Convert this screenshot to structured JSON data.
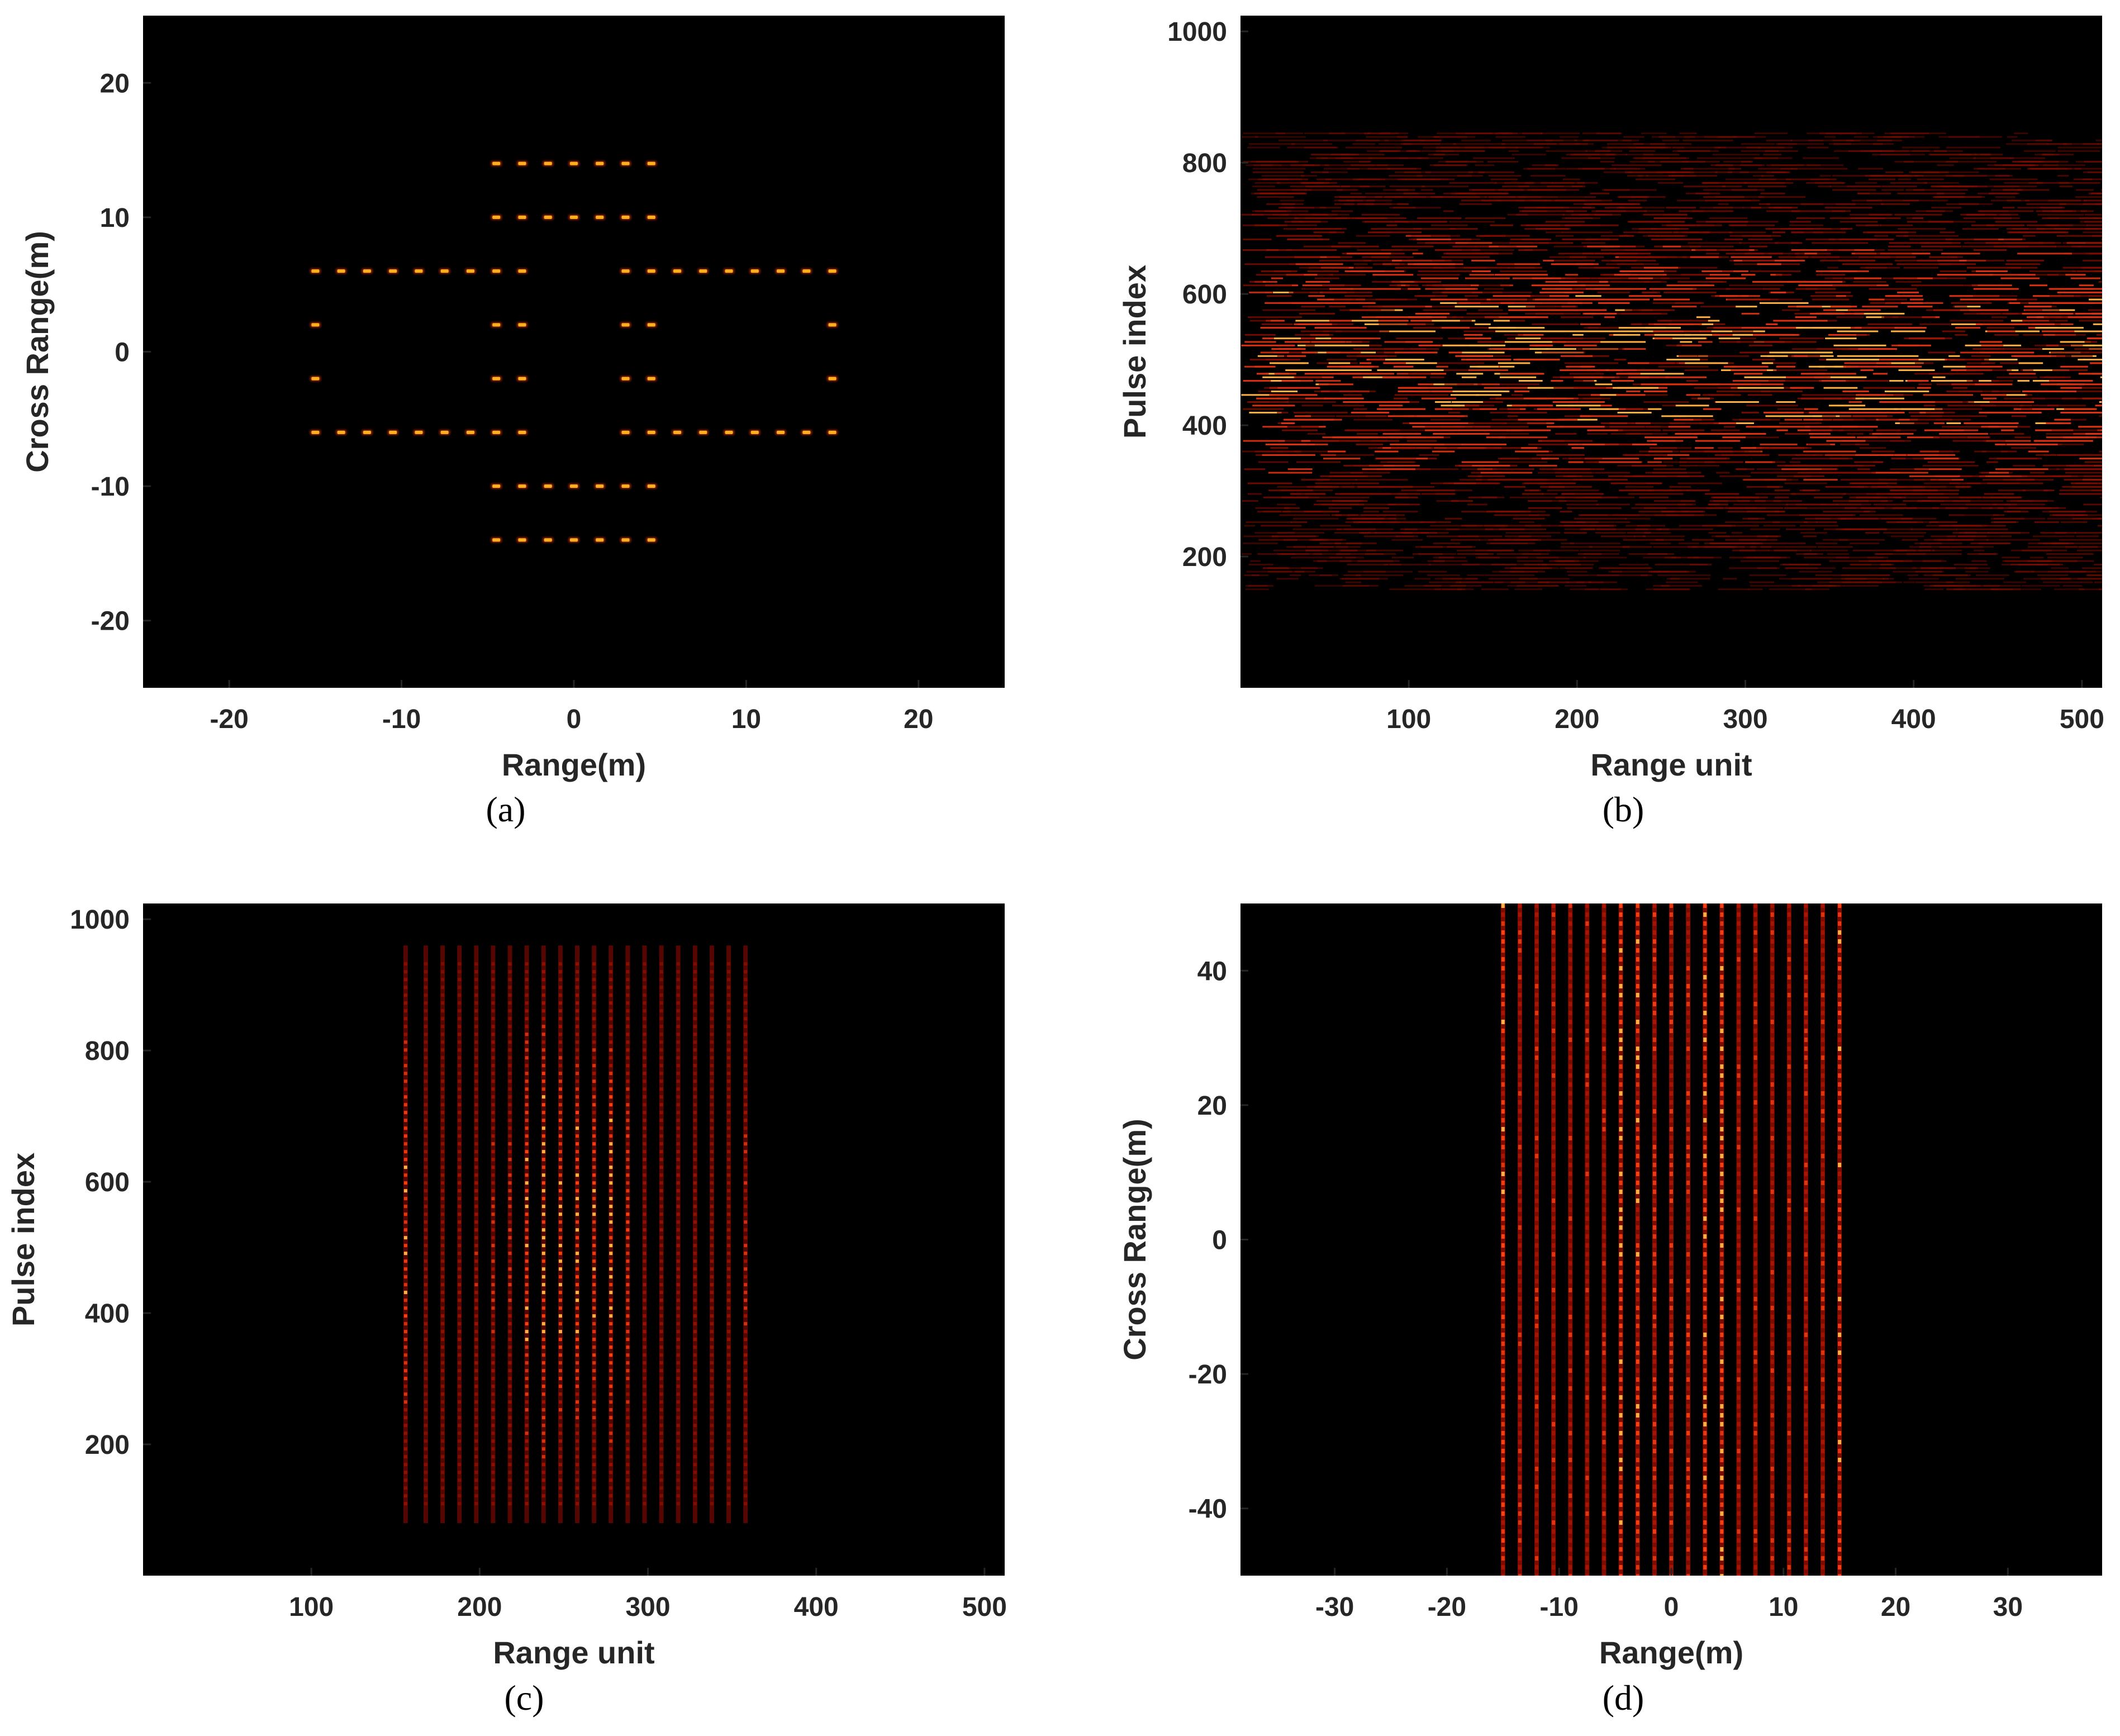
{
  "chart_data": [
    {
      "panel": "(a)",
      "type": "scatter",
      "xlabel": "Range(m)",
      "ylabel": "Cross Range(m)",
      "xlim": [
        -25,
        25
      ],
      "ylim": [
        -25,
        25
      ],
      "xticks": [
        -20,
        -10,
        0,
        10,
        20
      ],
      "yticks": [
        -20,
        -10,
        0,
        10,
        20
      ],
      "xtick_labels": [
        "-20",
        "-10",
        "0",
        "10",
        "20"
      ],
      "ytick_labels": [
        "-20",
        "-10",
        "0",
        "10",
        "20"
      ],
      "background": "#000000",
      "point_color": "#ffb020",
      "point_rows": [
        {
          "y": 14,
          "x": [
            -4.5,
            -3,
            -1.5,
            0,
            1.5,
            3,
            4.5
          ]
        },
        {
          "y": 10,
          "x": [
            -4.5,
            -3,
            -1.5,
            0,
            1.5,
            3,
            4.5
          ]
        },
        {
          "y": 6,
          "x": [
            -15,
            -13.5,
            -12,
            -10.5,
            -9,
            -7.5,
            -6,
            -4.5,
            -3,
            3,
            4.5,
            6,
            7.5,
            9,
            10.5,
            12,
            13.5,
            15
          ]
        },
        {
          "y": 2,
          "x": [
            -15,
            -4.5,
            -3,
            3,
            4.5,
            15
          ]
        },
        {
          "y": -2,
          "x": [
            -15,
            -4.5,
            -3,
            3,
            4.5,
            15
          ]
        },
        {
          "y": -6,
          "x": [
            -15,
            -13.5,
            -12,
            -10.5,
            -9,
            -7.5,
            -6,
            -4.5,
            -3,
            3,
            4.5,
            6,
            7.5,
            9,
            10.5,
            12,
            13.5,
            15
          ]
        },
        {
          "y": -10,
          "x": [
            -4.5,
            -3,
            -1.5,
            0,
            1.5,
            3,
            4.5
          ]
        },
        {
          "y": -14,
          "x": [
            -4.5,
            -3,
            -1.5,
            0,
            1.5,
            3,
            4.5
          ]
        }
      ]
    },
    {
      "panel": "(b)",
      "type": "heatmap",
      "xlabel": "Range unit",
      "ylabel": "Pulse index",
      "xlim": [
        0,
        512
      ],
      "ylim": [
        0,
        1024
      ],
      "xticks": [
        100,
        200,
        300,
        400,
        500
      ],
      "yticks": [
        200,
        400,
        600,
        800,
        1000
      ],
      "xtick_labels": [
        "100",
        "200",
        "300",
        "400",
        "500"
      ],
      "ytick_labels": [
        "200",
        "400",
        "600",
        "800",
        1000
      ],
      "background": "#000000",
      "stripe_color": "#b01000",
      "description_values": {
        "energy_pulse_range": [
          150,
          850
        ],
        "peak_pulse": 500
      }
    },
    {
      "panel": "(c)",
      "type": "heatmap",
      "xlabel": "Range unit",
      "ylabel": "Pulse index",
      "xlim": [
        0,
        512
      ],
      "ylim": [
        0,
        1024
      ],
      "xticks": [
        100,
        200,
        300,
        400,
        500
      ],
      "yticks": [
        200,
        400,
        600,
        800,
        1000
      ],
      "xtick_labels": [
        "100",
        "200",
        "300",
        "400",
        "500"
      ],
      "ytick_labels": [
        "200",
        "400",
        "600",
        "800",
        "1000"
      ],
      "background": "#000000",
      "stripe_color": "#d02000",
      "stripe_x": [
        156,
        168,
        178,
        188,
        198,
        208,
        218,
        228,
        238,
        248,
        258,
        268,
        278,
        288,
        298,
        308,
        318,
        328,
        338,
        348,
        358
      ],
      "stripe_intensity": [
        0.8,
        0.35,
        0.35,
        0.4,
        0.45,
        0.5,
        0.55,
        0.9,
        1.0,
        0.85,
        0.9,
        0.8,
        0.95,
        0.7,
        0.4,
        0.35,
        0.35,
        0.35,
        0.35,
        0.4,
        0.5
      ],
      "pulse_range": [
        80,
        960
      ]
    },
    {
      "panel": "(d)",
      "type": "heatmap",
      "xlabel": "Range(m)",
      "ylabel": "Cross Range(m)",
      "xlim": [
        -38.4,
        38.4
      ],
      "ylim": [
        -50,
        50
      ],
      "xticks": [
        -30,
        -20,
        -10,
        0,
        10,
        20,
        30
      ],
      "yticks": [
        -40,
        -20,
        0,
        20,
        40
      ],
      "xtick_labels": [
        "-30",
        "-20",
        "-10",
        "0",
        "10",
        "20",
        "30"
      ],
      "ytick_labels": [
        "-40",
        "-20",
        "0",
        "20",
        "40"
      ],
      "background": "#000000",
      "stripe_color": "#d02000",
      "stripe_x": [
        -15,
        -13.5,
        -12,
        -10.5,
        -9,
        -7.5,
        -6,
        -4.5,
        -3,
        -1.5,
        0,
        1.5,
        3,
        4.5,
        6,
        7.5,
        9,
        10.5,
        12,
        13.5,
        15
      ],
      "stripe_intensity": [
        0.8,
        0.5,
        0.5,
        0.5,
        0.5,
        0.5,
        0.5,
        0.9,
        0.8,
        0.6,
        0.6,
        0.6,
        0.8,
        0.9,
        0.5,
        0.5,
        0.5,
        0.5,
        0.5,
        0.5,
        0.8
      ]
    }
  ]
}
